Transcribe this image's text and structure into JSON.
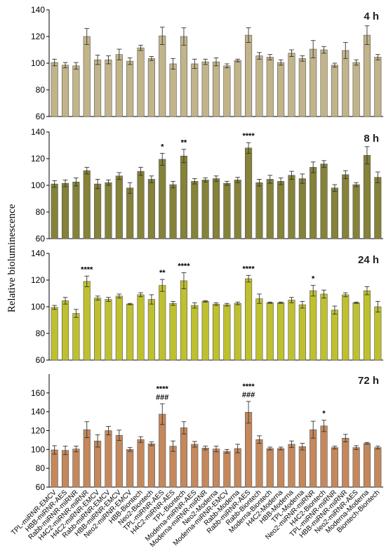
{
  "chart_data": {
    "type": "bar",
    "ylabel": "Relative bioluminescence",
    "categories": [
      "TPL-miRNR-EMCV",
      "HBB-miRNR-AES",
      "Rabb-miRNR-miRNR",
      "H4C2-miRNR-miRNR",
      "H4C2-miRNR-EMCV",
      "Rabb-miRNR-EMCV",
      "HBB-miRNR-EMCV",
      "Neo2-miRNR-EMCV",
      "HBB-Biontech",
      "Neo2-Biontech",
      "TPL-miRNR-AES",
      "H4C2-miRNR-AES",
      "TPL-Biontech",
      "Moderna-miRNR-AES",
      "Moderna-miRNR-miRNR",
      "Neo2-Moderna",
      "Moderna-miRNR-EMCV",
      "Rabb-Moderna",
      "Rabb-miRNR-AES",
      "Rabb-Biontech",
      "Moderna-Biontech",
      "H4C2-Moderna",
      "HBB-Moderna",
      "TPL-Moderna",
      "Neo2-miRNR-miRNR",
      "H4C2-Biontech",
      "TPL-miRNR-miRNR",
      "HBB-miRNR-miRNR",
      "Neo2-miRNR-AES",
      "Moderna-Moderna",
      "Biontech-Biontech"
    ],
    "panels": [
      {
        "label": "4 h",
        "color": "#c2b48a",
        "ylim": [
          60,
          140
        ],
        "yticks": [
          "60",
          "80",
          "100",
          "120",
          "140"
        ],
        "values": [
          100.5,
          98.5,
          98,
          120,
          102.5,
          102.5,
          106.5,
          101.5,
          111.5,
          103.5,
          120.5,
          99.5,
          120,
          99.5,
          101,
          101,
          98,
          102,
          121,
          105.5,
          104.5,
          100.5,
          107.5,
          103.5,
          110.5,
          110,
          98.5,
          109.5,
          100.5,
          121,
          104.5
        ],
        "errors": [
          2.5,
          2,
          2.5,
          6,
          3.5,
          3,
          4,
          2.5,
          2,
          1.5,
          6.5,
          4,
          6.5,
          3.5,
          2,
          3,
          1.5,
          1,
          5.5,
          2.5,
          2,
          2,
          2.5,
          2,
          6.5,
          2.5,
          1.5,
          6,
          2,
          7,
          2
        ],
        "annotations": []
      },
      {
        "label": "8 h",
        "color": "#858239",
        "ylim": [
          60,
          140
        ],
        "yticks": [
          "60",
          "80",
          "100",
          "120",
          "140"
        ],
        "values": [
          101,
          101.5,
          102.5,
          111,
          101,
          102,
          107,
          98,
          110.5,
          104.5,
          119.5,
          100.5,
          122,
          103,
          104,
          105,
          101.5,
          104,
          128,
          102,
          104.5,
          103,
          107.5,
          105,
          113.5,
          116,
          98,
          108,
          100.5,
          122.5,
          106
        ],
        "errors": [
          2.5,
          2.5,
          3,
          2.5,
          3.5,
          2,
          2.5,
          4,
          3,
          2.5,
          4.5,
          2.5,
          5,
          2,
          1.5,
          2,
          1.5,
          2,
          4,
          2.5,
          3,
          2.5,
          3,
          3.5,
          4,
          2.5,
          2.5,
          3,
          1.5,
          6.5,
          4
        ],
        "annotations": [
          {
            "index": 10,
            "text": "*"
          },
          {
            "index": 12,
            "text": "**"
          },
          {
            "index": 18,
            "text": "****"
          }
        ]
      },
      {
        "label": "24 h",
        "color": "#bfc02f",
        "ylim": [
          60,
          140
        ],
        "yticks": [
          "60",
          "80",
          "100",
          "120",
          "140"
        ],
        "values": [
          99.5,
          104.5,
          95,
          119,
          106.5,
          105.5,
          108,
          102,
          109,
          105.5,
          116,
          102.5,
          119.5,
          101,
          104,
          102,
          101.5,
          102.5,
          121,
          106,
          103,
          103,
          105,
          101.5,
          112,
          109.5,
          97.5,
          109,
          103,
          112,
          100
        ],
        "errors": [
          1.5,
          2.5,
          3,
          4,
          1.5,
          1.5,
          1.5,
          0.5,
          1.5,
          3.5,
          4.5,
          1.5,
          6,
          2,
          0.5,
          1,
          1,
          1,
          2.5,
          3.5,
          0.5,
          0.5,
          2,
          2.5,
          4,
          3,
          3,
          1.5,
          0.5,
          3,
          4
        ],
        "annotations": [
          {
            "index": 3,
            "text": "****"
          },
          {
            "index": 10,
            "text": "**"
          },
          {
            "index": 12,
            "text": "****"
          },
          {
            "index": 18,
            "text": "****"
          },
          {
            "index": 24,
            "text": "*"
          }
        ]
      },
      {
        "label": "72 h",
        "color": "#c4885c",
        "ylim": [
          60,
          180
        ],
        "yticks": [
          "60",
          "80",
          "100",
          "120",
          "140",
          "160"
        ],
        "values": [
          99.5,
          99,
          100.5,
          121,
          109,
          120,
          115,
          100,
          110.5,
          106,
          137.5,
          103.5,
          123,
          105.5,
          101.5,
          100.5,
          98,
          101,
          139.5,
          110.5,
          101,
          101,
          105.5,
          103,
          121,
          125,
          102,
          112,
          102,
          106.5,
          102
        ],
        "errors": [
          4.5,
          4.5,
          3,
          8.5,
          6.5,
          4.5,
          5.5,
          2,
          3,
          2,
          11,
          5.5,
          6.5,
          3,
          2,
          3,
          2,
          4.5,
          11.5,
          4,
          1.5,
          1.5,
          3.5,
          3.5,
          9,
          6,
          1.5,
          4,
          2,
          1,
          1.5
        ],
        "annotations": [
          {
            "index": 10,
            "text": "****"
          },
          {
            "index": 10,
            "text": "###"
          },
          {
            "index": 18,
            "text": "****"
          },
          {
            "index": 18,
            "text": "###"
          },
          {
            "index": 25,
            "text": "*"
          }
        ]
      }
    ]
  }
}
